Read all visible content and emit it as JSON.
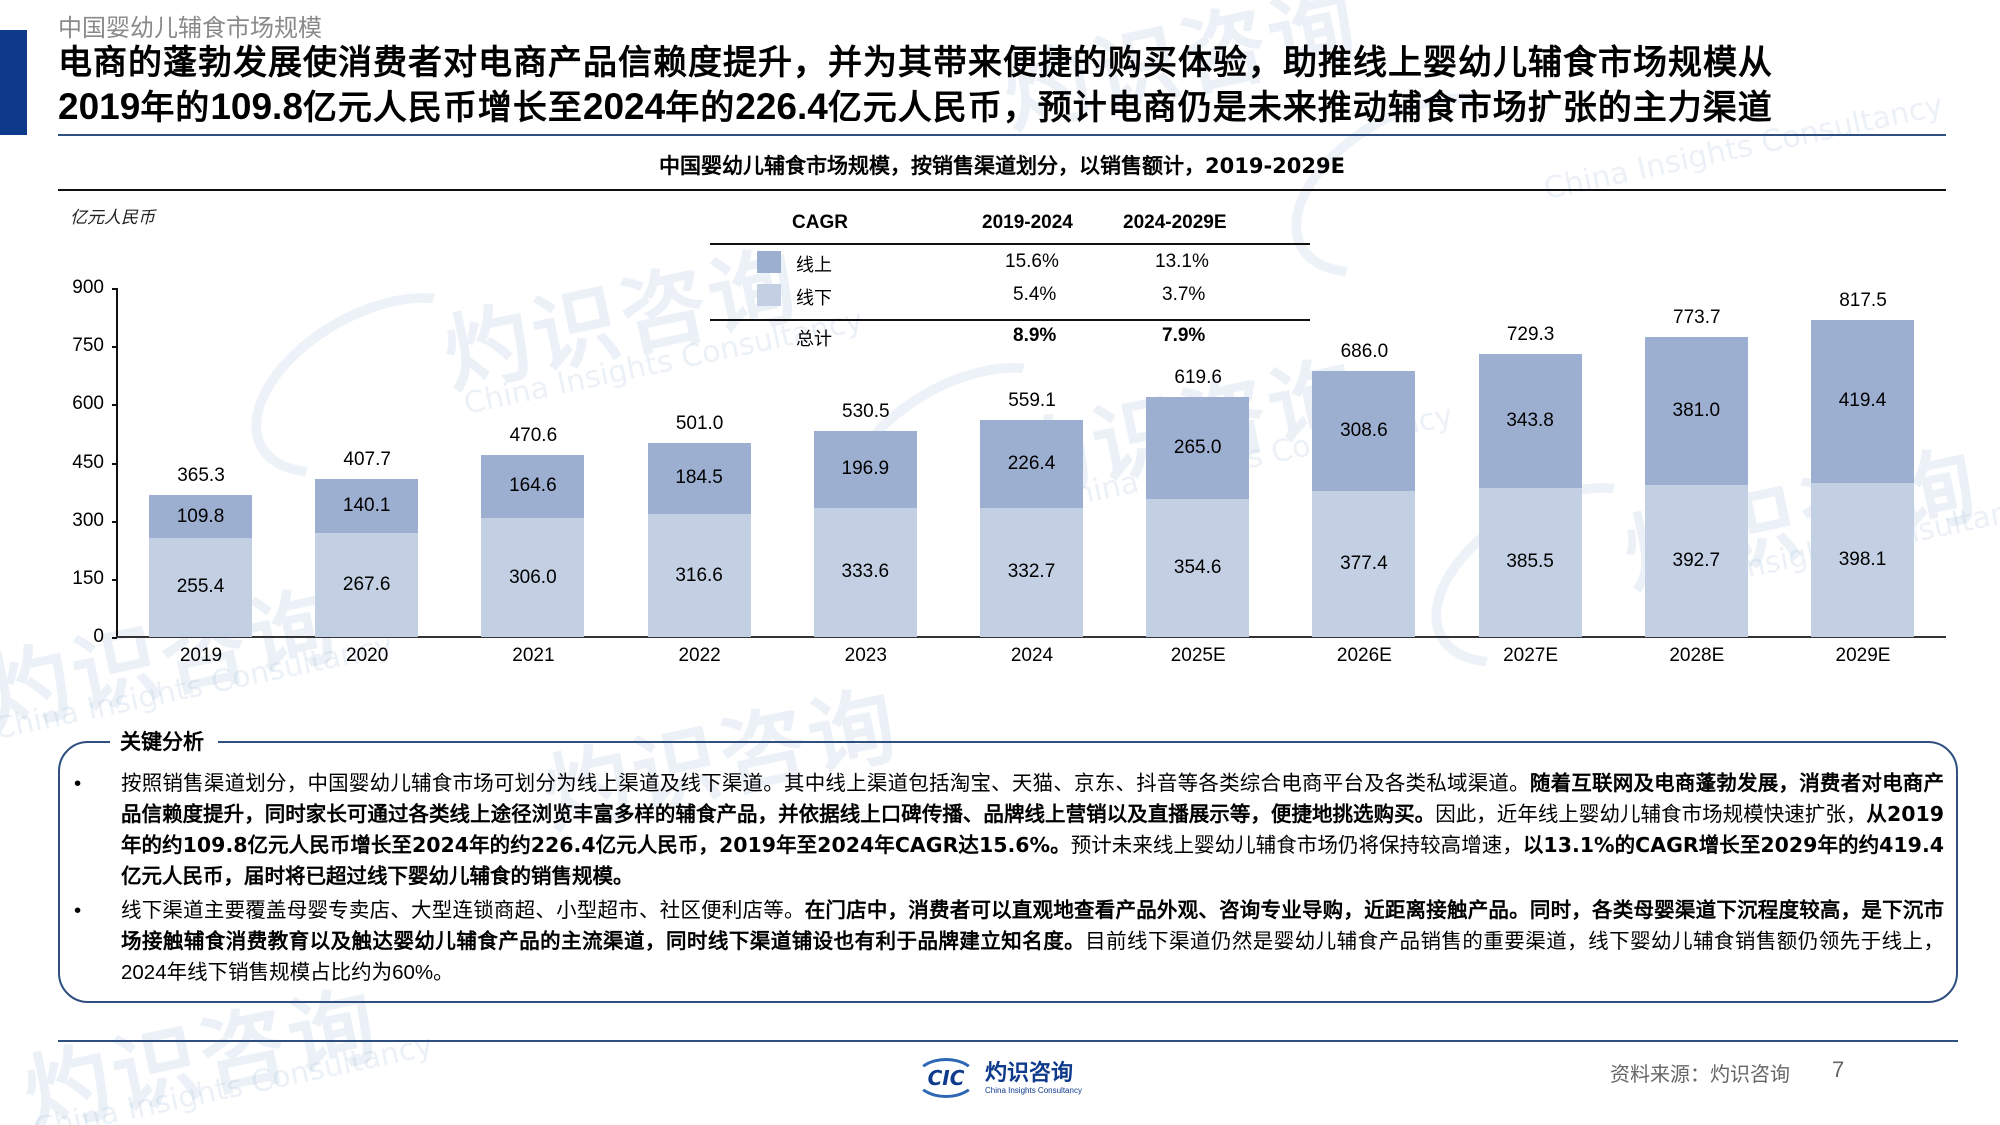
{
  "header": {
    "section_label": "中国婴幼儿辅食市场规模",
    "headline_line1": "电商的蓬勃发展使消费者对电商产品信赖度提升，并为其带来便捷的购买体验，助推线上婴幼儿辅食市场规模从",
    "headline_line2_a": "2019",
    "headline_line2_b": "年的",
    "headline_line2_c": "109.8",
    "headline_line2_d": "亿元人民币增长至",
    "headline_line2_e": "2024",
    "headline_line2_f": "年的",
    "headline_line2_g": "226.4",
    "headline_line2_h": "亿元人民币，预计电商仍是未来推动辅食市场扩张的主力渠道"
  },
  "colors": {
    "accent": "#0e3a8c",
    "rule": "#2e4f80",
    "online": "#9dafd0",
    "offline": "#c3cfe3"
  },
  "chart_data": {
    "type": "bar",
    "stacked": true,
    "title": "中国婴幼儿辅食市场规模，按销售渠道划分，以销售额计，2019-2029E",
    "xlabel": "",
    "ylabel": "亿元人民币",
    "ylim": [
      0,
      900
    ],
    "yticks": [
      "0",
      "150",
      "300",
      "450",
      "600",
      "750",
      "900"
    ],
    "grid": false,
    "legend_position": "top-center (inside CAGR table)",
    "categories": [
      "2019",
      "2020",
      "2021",
      "2022",
      "2023",
      "2024",
      "2025E",
      "2026E",
      "2027E",
      "2028E",
      "2029E"
    ],
    "series": [
      {
        "name": "线下",
        "color": "#c3cfe3",
        "values": [
          255.4,
          267.6,
          306.0,
          316.6,
          333.6,
          332.7,
          354.6,
          377.4,
          385.5,
          392.7,
          398.1
        ],
        "labels": [
          "255.4",
          "267.6",
          "306.0",
          "316.6",
          "333.6",
          "332.7",
          "354.6",
          "377.4",
          "385.5",
          "392.7",
          "398.1"
        ]
      },
      {
        "name": "线上",
        "color": "#9dafd0",
        "values": [
          109.8,
          140.1,
          164.6,
          184.5,
          196.9,
          226.4,
          265.0,
          308.6,
          343.8,
          381.0,
          419.4
        ],
        "labels": [
          "109.8",
          "140.1",
          "164.6",
          "184.5",
          "196.9",
          "226.4",
          "265.0",
          "308.6",
          "343.8",
          "381.0",
          "419.4"
        ]
      }
    ],
    "totals": [
      365.3,
      407.7,
      470.6,
      501.0,
      530.5,
      559.1,
      619.6,
      686.0,
      729.3,
      773.7,
      817.5
    ],
    "total_labels": [
      "365.3",
      "407.7",
      "470.6",
      "501.0",
      "530.5",
      "559.1",
      "619.6",
      "686.0",
      "729.3",
      "773.7",
      "817.5"
    ]
  },
  "cagr_table": {
    "headers": [
      "CAGR",
      "2019-2024",
      "2024-2029E"
    ],
    "rows": [
      {
        "label": "线上",
        "v1": "15.6%",
        "v2": "13.1%"
      },
      {
        "label": "线下",
        "v1": "5.4%",
        "v2": "3.7%"
      }
    ],
    "total": {
      "label": "总计",
      "v1": "8.9%",
      "v2": "7.9%"
    }
  },
  "analysis": {
    "title": "关键分析",
    "bullet": "•",
    "item1": {
      "p1": "按照销售渠道划分，中国婴幼儿辅食市场可划分为线上渠道及线下渠道。其中线上渠道包括淘宝、天猫、京东、抖音等各类综合电商平台及各类私域渠道。",
      "p2": "随着互联网及电商蓬勃发展，消费者对电商产品信赖度提升，同时家长可通过各类线上途径浏览丰富多样的辅食产品，并依据线上口碑传播、品牌线上营销以及直播展示等，便捷地挑选购买。",
      "p3": "因此，近年线上婴幼儿辅食市场规模快速扩张，",
      "p4": "从2019年的约109.8亿元人民币增长至2024年的约226.4亿元人民币，2019年至2024年CAGR达15.6%。",
      "p5": "预计未来线上婴幼儿辅食市场仍将保持较高增速，",
      "p6": "以13.1%的CAGR增长至2029年的约419.4亿元人民币，",
      "p7": "届时将已超过线下婴幼儿辅食的销售规模。"
    },
    "item2": {
      "p1": "线下渠道主要覆盖母婴专卖店、大型连锁商超、小型超市、社区便利店等。",
      "p2": "在门店中，消费者可以直观地查看产品外观、咨询专业导购，近距离接触产品。同时，各类母婴渠道下沉程度较高，是下沉市场接触辅食消费教育以及触达婴幼儿辅食产品的主流渠道，同时线下渠道铺设也有利于品牌建立知名度。",
      "p3": "目前线下渠道仍然是婴幼儿辅食产品销售的重要渠道，线下婴幼儿辅食销售额仍领先于线上，",
      "p4": "2024年线下销售规模占比约为60%。"
    }
  },
  "footer": {
    "logo_mark": "CIC",
    "logo_cn": "灼识咨询",
    "logo_en": "China Insights Consultancy",
    "source": "资料来源：灼识咨询",
    "page_number": "7"
  },
  "watermark": {
    "cn": "灼识咨询",
    "en": "China Insights Consultancy"
  }
}
